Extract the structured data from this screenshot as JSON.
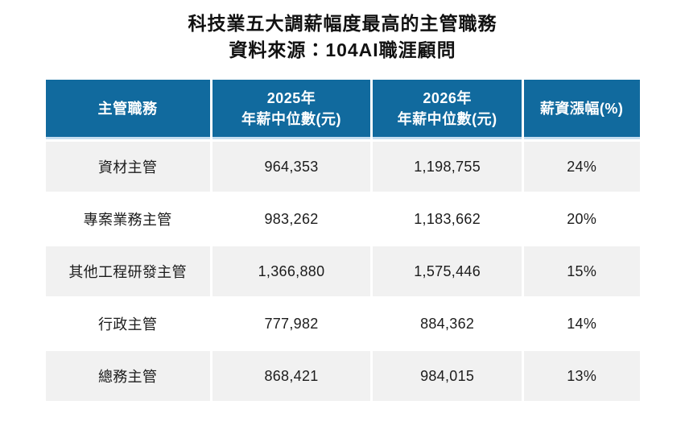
{
  "page": {
    "title": "科技業五大調薪幅度最高的主管職務",
    "subtitle": "資料來源：104AI職涯顧問"
  },
  "table": {
    "headers": {
      "position": "主管職務",
      "y2025_line1": "2025年",
      "y2025_line2": "年薪中位數(元)",
      "y2026_line1": "2026年",
      "y2026_line2": "年薪中位數(元)",
      "increase": "薪資漲幅(%)"
    },
    "rows": [
      {
        "position": "資材主管",
        "salary_2025": "964,353",
        "salary_2026": "1,198,755",
        "increase": "24%"
      },
      {
        "position": "專案業務主管",
        "salary_2025": "983,262",
        "salary_2026": "1,183,662",
        "increase": "20%"
      },
      {
        "position": "其他工程研發主管",
        "salary_2025": "1,366,880",
        "salary_2026": "1,575,446",
        "increase": "15%"
      },
      {
        "position": "行政主管",
        "salary_2025": "777,982",
        "salary_2026": "884,362",
        "increase": "14%"
      },
      {
        "position": "總務主管",
        "salary_2025": "868,421",
        "salary_2026": "984,015",
        "increase": "13%"
      }
    ]
  },
  "colors": {
    "header_bg": "#116a9e",
    "header_text": "#ffffff",
    "header_accent_line": "#c5def0",
    "row_alt_bg": "#f1f1f1",
    "row_bg": "#ffffff",
    "body_text": "#1c1c1c",
    "title_text": "#111111"
  },
  "chart_data": {
    "type": "table",
    "title": "科技業五大調薪幅度最高的主管職務",
    "subtitle": "資料來源：104AI職涯顧問",
    "columns": [
      "主管職務",
      "2025年 年薪中位數(元)",
      "2026年 年薪中位數(元)",
      "薪資漲幅(%)"
    ],
    "rows": [
      [
        "資材主管",
        964353,
        1198755,
        "24%"
      ],
      [
        "專案業務主管",
        983262,
        1183662,
        "20%"
      ],
      [
        "其他工程研發主管",
        1366880,
        1575446,
        "15%"
      ],
      [
        "行政主管",
        777982,
        884362,
        "14%"
      ],
      [
        "總務主管",
        868421,
        984015,
        "13%"
      ]
    ],
    "notes": "Static infographic table; header row blue (#116a9e) with white bold text; body rows alternate light gray (#f1f1f1) and white; all cells center-aligned."
  }
}
